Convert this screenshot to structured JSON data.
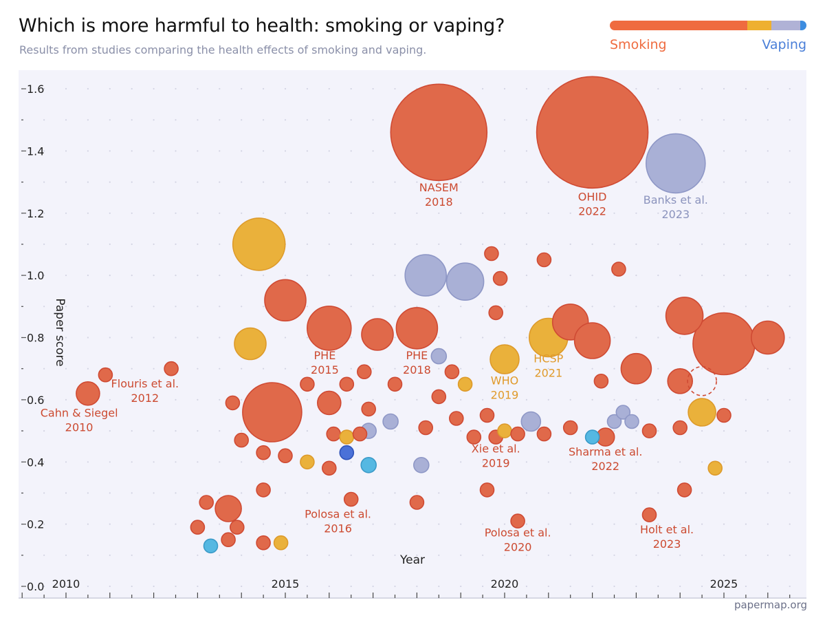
{
  "chart_data": {
    "type": "scatter",
    "title": "Which is more harmful to health: smoking or vaping?",
    "subtitle": "Results from studies comparing the health effects of smoking and vaping.",
    "xlabel": "Year",
    "ylabel": "Paper score",
    "xlim": [
      2009.0,
      2026.9
    ],
    "ylim": [
      0.0,
      1.68
    ],
    "x_ticks": [
      "2010",
      "2015",
      "2020",
      "2025"
    ],
    "y_ticks": [
      "0.0",
      "0.2",
      "0.4",
      "0.6",
      "0.8",
      "1.0",
      "1.2",
      "1.4",
      "1.6"
    ],
    "legend": {
      "left_label": "Smoking",
      "right_label": "Vaping",
      "placement": "top-right"
    },
    "colors": {
      "smoking": "#e0694a",
      "smoking_edge": "#cf4a33",
      "label_smoking": "#cc4a30",
      "mixed": "#eab13b",
      "mixed_edge": "#dd9a2a",
      "label_mixed": "#e09a2a",
      "neutral": "#a9b0d6",
      "neutral_edge": "#8e97c6",
      "label_neutral": "#8b93bd",
      "vaping_light": "#55b8e2",
      "vaping_light_edge": "#3a9ac8",
      "vaping": "#4a71d8",
      "vaping_edge": "#2e52b8",
      "legend_vaping_text": "#4a7fd8",
      "plot_bg": "#f3f3fb"
    },
    "legend_bar": [
      {
        "color": "#ef6b3f",
        "fraction": 0.7
      },
      {
        "color": "#eeb030",
        "fraction": 0.12
      },
      {
        "color": "#b0b2d6",
        "fraction": 0.15
      },
      {
        "color": "#3d8de0",
        "fraction": 0.03
      }
    ],
    "points": [
      {
        "x": 2010.5,
        "y": 0.62,
        "r": 17,
        "c": "smoking"
      },
      {
        "x": 2010.9,
        "y": 0.68,
        "r": 10,
        "c": "smoking"
      },
      {
        "x": 2012.4,
        "y": 0.7,
        "r": 10,
        "c": "smoking"
      },
      {
        "x": 2013.2,
        "y": 0.27,
        "r": 10,
        "c": "smoking"
      },
      {
        "x": 2013.0,
        "y": 0.19,
        "r": 10,
        "c": "smoking"
      },
      {
        "x": 2013.3,
        "y": 0.13,
        "r": 10,
        "c": "vaping_light"
      },
      {
        "x": 2013.7,
        "y": 0.25,
        "r": 19,
        "c": "smoking"
      },
      {
        "x": 2013.9,
        "y": 0.19,
        "r": 10,
        "c": "smoking"
      },
      {
        "x": 2013.7,
        "y": 0.15,
        "r": 10,
        "c": "smoking"
      },
      {
        "x": 2013.8,
        "y": 0.59,
        "r": 10,
        "c": "smoking"
      },
      {
        "x": 2014.0,
        "y": 0.47,
        "r": 10,
        "c": "smoking"
      },
      {
        "x": 2014.2,
        "y": 0.78,
        "r": 23,
        "c": "mixed"
      },
      {
        "x": 2014.4,
        "y": 1.1,
        "r": 38,
        "c": "mixed"
      },
      {
        "x": 2014.5,
        "y": 0.43,
        "r": 10,
        "c": "smoking"
      },
      {
        "x": 2014.5,
        "y": 0.31,
        "r": 10,
        "c": "smoking"
      },
      {
        "x": 2014.5,
        "y": 0.14,
        "r": 10,
        "c": "smoking"
      },
      {
        "x": 2014.7,
        "y": 0.56,
        "r": 43,
        "c": "smoking"
      },
      {
        "x": 2014.9,
        "y": 0.14,
        "r": 10,
        "c": "mixed"
      },
      {
        "x": 2015.0,
        "y": 0.42,
        "r": 10,
        "c": "smoking"
      },
      {
        "x": 2015.0,
        "y": 0.92,
        "r": 30,
        "c": "smoking"
      },
      {
        "x": 2015.5,
        "y": 0.4,
        "r": 10,
        "c": "mixed"
      },
      {
        "x": 2015.5,
        "y": 0.65,
        "r": 10,
        "c": "smoking"
      },
      {
        "x": 2016.0,
        "y": 0.38,
        "r": 10,
        "c": "smoking"
      },
      {
        "x": 2016.0,
        "y": 0.59,
        "r": 17,
        "c": "smoking"
      },
      {
        "x": 2016.0,
        "y": 0.83,
        "r": 32,
        "c": "smoking"
      },
      {
        "x": 2016.1,
        "y": 0.49,
        "r": 10,
        "c": "smoking"
      },
      {
        "x": 2016.4,
        "y": 0.43,
        "r": 10,
        "c": "vaping"
      },
      {
        "x": 2016.4,
        "y": 0.48,
        "r": 10,
        "c": "mixed"
      },
      {
        "x": 2016.4,
        "y": 0.65,
        "r": 10,
        "c": "smoking"
      },
      {
        "x": 2016.5,
        "y": 0.28,
        "r": 10,
        "c": "smoking"
      },
      {
        "x": 2016.7,
        "y": 0.49,
        "r": 10,
        "c": "smoking"
      },
      {
        "x": 2016.8,
        "y": 0.69,
        "r": 10,
        "c": "smoking"
      },
      {
        "x": 2016.9,
        "y": 0.57,
        "r": 10,
        "c": "smoking"
      },
      {
        "x": 2016.9,
        "y": 0.5,
        "r": 11,
        "c": "neutral"
      },
      {
        "x": 2016.9,
        "y": 0.39,
        "r": 11,
        "c": "vaping_light"
      },
      {
        "x": 2017.1,
        "y": 0.81,
        "r": 23,
        "c": "smoking"
      },
      {
        "x": 2017.4,
        "y": 0.53,
        "r": 11,
        "c": "neutral"
      },
      {
        "x": 2017.5,
        "y": 0.65,
        "r": 10,
        "c": "smoking"
      },
      {
        "x": 2018.0,
        "y": 0.27,
        "r": 10,
        "c": "smoking"
      },
      {
        "x": 2018.0,
        "y": 0.83,
        "r": 30,
        "c": "smoking"
      },
      {
        "x": 2018.1,
        "y": 0.39,
        "r": 11,
        "c": "neutral"
      },
      {
        "x": 2018.2,
        "y": 0.51,
        "r": 10,
        "c": "smoking"
      },
      {
        "x": 2018.2,
        "y": 1.0,
        "r": 30,
        "c": "neutral"
      },
      {
        "x": 2018.5,
        "y": 0.61,
        "r": 10,
        "c": "smoking"
      },
      {
        "x": 2018.5,
        "y": 0.74,
        "r": 11,
        "c": "neutral"
      },
      {
        "x": 2018.5,
        "y": 1.46,
        "r": 70,
        "c": "smoking"
      },
      {
        "x": 2018.8,
        "y": 0.69,
        "r": 10,
        "c": "smoking"
      },
      {
        "x": 2018.9,
        "y": 0.54,
        "r": 10,
        "c": "smoking"
      },
      {
        "x": 2019.1,
        "y": 0.65,
        "r": 10,
        "c": "mixed"
      },
      {
        "x": 2019.1,
        "y": 0.98,
        "r": 27,
        "c": "neutral"
      },
      {
        "x": 2019.3,
        "y": 0.48,
        "r": 10,
        "c": "smoking"
      },
      {
        "x": 2019.6,
        "y": 0.31,
        "r": 10,
        "c": "smoking"
      },
      {
        "x": 2019.6,
        "y": 0.55,
        "r": 10,
        "c": "smoking"
      },
      {
        "x": 2019.7,
        "y": 1.07,
        "r": 10,
        "c": "smoking"
      },
      {
        "x": 2019.8,
        "y": 0.48,
        "r": 10,
        "c": "smoking"
      },
      {
        "x": 2019.8,
        "y": 0.88,
        "r": 10,
        "c": "smoking"
      },
      {
        "x": 2019.9,
        "y": 0.99,
        "r": 10,
        "c": "smoking"
      },
      {
        "x": 2020.0,
        "y": 0.5,
        "r": 10,
        "c": "mixed"
      },
      {
        "x": 2020.0,
        "y": 0.73,
        "r": 21,
        "c": "mixed"
      },
      {
        "x": 2020.3,
        "y": 0.21,
        "r": 10,
        "c": "smoking"
      },
      {
        "x": 2020.3,
        "y": 0.49,
        "r": 10,
        "c": "smoking"
      },
      {
        "x": 2020.6,
        "y": 0.53,
        "r": 14,
        "c": "neutral"
      },
      {
        "x": 2020.9,
        "y": 1.05,
        "r": 10,
        "c": "smoking"
      },
      {
        "x": 2020.9,
        "y": 0.49,
        "r": 10,
        "c": "smoking"
      },
      {
        "x": 2021.0,
        "y": 0.8,
        "r": 28,
        "c": "mixed"
      },
      {
        "x": 2021.5,
        "y": 0.51,
        "r": 10,
        "c": "smoking"
      },
      {
        "x": 2021.5,
        "y": 0.85,
        "r": 26,
        "c": "smoking"
      },
      {
        "x": 2022.0,
        "y": 0.48,
        "r": 10,
        "c": "vaping_light"
      },
      {
        "x": 2022.0,
        "y": 0.79,
        "r": 26,
        "c": "smoking"
      },
      {
        "x": 2022.0,
        "y": 1.46,
        "r": 81,
        "c": "smoking"
      },
      {
        "x": 2022.2,
        "y": 0.66,
        "r": 10,
        "c": "smoking"
      },
      {
        "x": 2022.3,
        "y": 0.48,
        "r": 13,
        "c": "smoking"
      },
      {
        "x": 2022.5,
        "y": 0.53,
        "r": 10,
        "c": "neutral"
      },
      {
        "x": 2022.6,
        "y": 1.02,
        "r": 10,
        "c": "smoking"
      },
      {
        "x": 2022.7,
        "y": 0.56,
        "r": 10,
        "c": "neutral"
      },
      {
        "x": 2022.9,
        "y": 0.53,
        "r": 10,
        "c": "neutral"
      },
      {
        "x": 2023.0,
        "y": 0.7,
        "r": 22,
        "c": "smoking"
      },
      {
        "x": 2023.3,
        "y": 0.5,
        "r": 10,
        "c": "smoking"
      },
      {
        "x": 2023.3,
        "y": 0.23,
        "r": 10,
        "c": "smoking"
      },
      {
        "x": 2023.9,
        "y": 1.36,
        "r": 43,
        "c": "neutral"
      },
      {
        "x": 2024.0,
        "y": 0.51,
        "r": 10,
        "c": "smoking"
      },
      {
        "x": 2024.0,
        "y": 0.66,
        "r": 18,
        "c": "smoking"
      },
      {
        "x": 2024.1,
        "y": 0.31,
        "r": 10,
        "c": "smoking"
      },
      {
        "x": 2024.1,
        "y": 0.87,
        "r": 27,
        "c": "smoking"
      },
      {
        "x": 2024.5,
        "y": 0.56,
        "r": 20,
        "c": "mixed"
      },
      {
        "x": 2024.8,
        "y": 0.38,
        "r": 10,
        "c": "mixed"
      },
      {
        "x": 2025.0,
        "y": 0.55,
        "r": 10,
        "c": "smoking"
      },
      {
        "x": 2025.0,
        "y": 0.78,
        "r": 45,
        "c": "smoking"
      },
      {
        "x": 2026.0,
        "y": 0.8,
        "r": 24,
        "c": "smoking"
      }
    ],
    "dashed_circle": {
      "x": 2024.5,
      "y": 0.66,
      "r": 21
    },
    "annotations": [
      {
        "line1": "Cahn & Siegel",
        "line2": "2010",
        "x": 2010.3,
        "y": 0.545,
        "c": "smoking"
      },
      {
        "line1": "Flouris et al.",
        "line2": "2012",
        "x": 2011.8,
        "y": 0.64,
        "c": "smoking"
      },
      {
        "line1": "PHE",
        "line2": "2015",
        "x": 2015.9,
        "y": 0.73,
        "c": "smoking"
      },
      {
        "line1": "Polosa et al.",
        "line2": "2016",
        "x": 2016.2,
        "y": 0.22,
        "c": "smoking"
      },
      {
        "line1": "NASEM",
        "line2": "2018",
        "x": 2018.5,
        "y": 1.27,
        "c": "smoking"
      },
      {
        "line1": "PHE",
        "line2": "2018",
        "x": 2018.0,
        "y": 0.73,
        "c": "smoking"
      },
      {
        "line1": "WHO",
        "line2": "2019",
        "x": 2020.0,
        "y": 0.65,
        "c": "mixed"
      },
      {
        "line1": "Xie et al.",
        "line2": "2019",
        "x": 2019.8,
        "y": 0.43,
        "c": "smoking"
      },
      {
        "line1": "Polosa et al.",
        "line2": "2020",
        "x": 2020.3,
        "y": 0.16,
        "c": "smoking"
      },
      {
        "line1": "HCSP",
        "line2": "2021",
        "x": 2021.0,
        "y": 0.72,
        "c": "mixed"
      },
      {
        "line1": "OHID",
        "line2": "2022",
        "x": 2022.0,
        "y": 1.24,
        "c": "smoking"
      },
      {
        "line1": "Banks et al.",
        "line2": "2023",
        "x": 2023.9,
        "y": 1.23,
        "c": "neutral"
      },
      {
        "line1": "Sharma et al.",
        "line2": "2022",
        "x": 2022.3,
        "y": 0.42,
        "c": "smoking"
      },
      {
        "line1": "Holt et al.",
        "line2": "2023",
        "x": 2023.7,
        "y": 0.17,
        "c": "smoking"
      }
    ]
  },
  "footer": "papermap.org"
}
